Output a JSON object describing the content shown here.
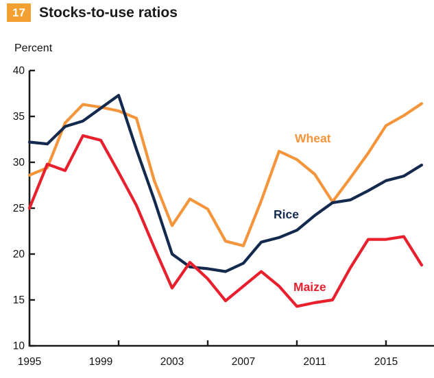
{
  "header": {
    "figure_number": "17",
    "title": "Stocks-to-use ratios"
  },
  "chart_data": {
    "type": "line",
    "title": "Stocks-to-use ratios",
    "figure_number": "17",
    "ylabel": "Percent",
    "xlabel": "",
    "ylim": [
      10,
      40
    ],
    "xlim": [
      1995,
      2017.7
    ],
    "grid": false,
    "legend_position": "inline-labels",
    "y_ticks": [
      "10",
      "15",
      "20",
      "25",
      "30",
      "35",
      "40"
    ],
    "x_tick_years": [
      1995,
      2000,
      2005,
      2010,
      2015
    ],
    "x_labels": [
      "1995",
      "1999",
      "2003",
      "2007",
      "2011",
      "2015"
    ],
    "x_label_years": [
      1995,
      1999,
      2003,
      2007,
      2011,
      2015
    ],
    "years": [
      1995,
      1996,
      1997,
      1998,
      1999,
      2000,
      2001,
      2002,
      2003,
      2004,
      2005,
      2006,
      2007,
      2008,
      2009,
      2010,
      2011,
      2012,
      2013,
      2014,
      2015,
      2016,
      2017
    ],
    "series": [
      {
        "name": "Wheat",
        "color": "#F5953B",
        "values": [
          28.6,
          29.4,
          34.3,
          36.3,
          36.0,
          35.6,
          34.8,
          28.0,
          23.1,
          26.0,
          24.9,
          21.4,
          20.9,
          25.8,
          31.2,
          30.3,
          28.7,
          25.7,
          28.3,
          31.0,
          34.0,
          35.1,
          36.4
        ]
      },
      {
        "name": "Rice",
        "color": "#13294E",
        "values": [
          32.2,
          32.0,
          33.9,
          34.5,
          35.9,
          37.3,
          31.4,
          25.9,
          20.0,
          18.6,
          18.4,
          18.1,
          19.0,
          21.3,
          21.8,
          22.6,
          24.2,
          25.6,
          25.9,
          26.9,
          28.0,
          28.5,
          29.7
        ]
      },
      {
        "name": "Maize",
        "color": "#E8202D",
        "values": [
          25.0,
          29.8,
          29.1,
          32.9,
          32.4,
          28.9,
          25.3,
          20.7,
          16.3,
          19.1,
          17.3,
          14.9,
          16.5,
          18.1,
          16.5,
          14.3,
          14.7,
          15.0,
          18.5,
          21.6,
          21.6,
          21.9,
          18.8
        ]
      }
    ],
    "axis_color": "#1a1a1a"
  }
}
